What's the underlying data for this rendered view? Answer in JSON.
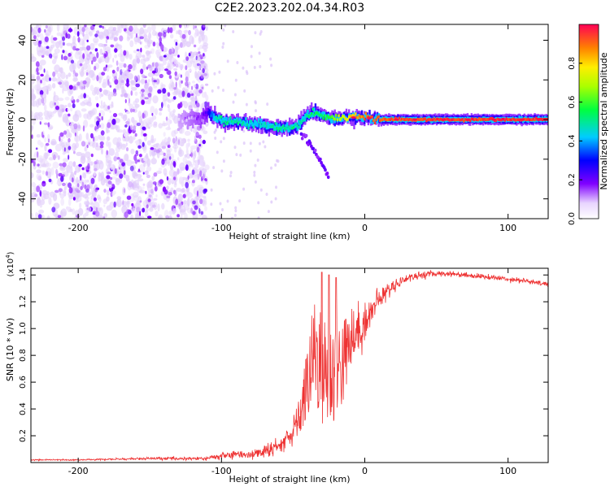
{
  "title": "C2E2.2023.202.04.34.R03",
  "chart_data": [
    {
      "type": "heatmap",
      "xlabel": "Height of straight line (km)",
      "ylabel": "Frequency (Hz)",
      "xlim": [
        -233,
        128
      ],
      "ylim": [
        -50,
        48
      ],
      "xticks": [
        -200,
        -100,
        0,
        100
      ],
      "yticks": [
        -40,
        -20,
        0,
        20,
        40
      ],
      "colorbar": {
        "label": "Normalized spectral amplitude",
        "range": [
          0,
          1
        ],
        "ticks": [
          0.0,
          0.2,
          0.4,
          0.6,
          0.8
        ]
      },
      "noise_region": {
        "x": [
          -233,
          -110
        ],
        "y": [
          -50,
          48
        ],
        "density": "high",
        "amplitude": [
          0.02,
          0.2
        ]
      },
      "sparse_region": {
        "x": [
          -110,
          -60
        ],
        "y": [
          -50,
          48
        ],
        "density": "low",
        "amplitude": [
          0.02,
          0.08
        ]
      },
      "ridge": {
        "x": [
          -130,
          -115,
          -110,
          -105,
          -100,
          -90,
          -80,
          -70,
          -60,
          -50,
          -45,
          -40,
          -35,
          -30,
          -25,
          -20,
          -15,
          -10,
          -5,
          0,
          10,
          30,
          60,
          90,
          128
        ],
        "freq": [
          0,
          0,
          4,
          1,
          -1,
          -1,
          -2,
          -3,
          -4,
          -4,
          -2,
          3,
          4,
          2,
          1,
          0,
          1,
          1,
          1,
          1,
          0,
          0,
          0,
          0,
          0
        ],
        "amplitude": [
          0.1,
          0.15,
          0.2,
          0.45,
          0.5,
          0.5,
          0.45,
          0.45,
          0.5,
          0.5,
          0.45,
          0.5,
          0.55,
          0.55,
          0.6,
          0.65,
          0.75,
          0.8,
          0.85,
          0.9,
          0.92,
          0.93,
          0.95,
          0.95,
          0.95
        ]
      },
      "tail": {
        "x": [
          -45,
          -40,
          -35,
          -30,
          -25
        ],
        "freq": [
          -6,
          -10,
          -16,
          -22,
          -30
        ],
        "amplitude": 0.15
      }
    },
    {
      "type": "line",
      "xlabel": "Height of straight line (km)",
      "ylabel": "SNR (10 * v/v)",
      "yscale_label": "(x10^4)",
      "xlim": [
        -233,
        128
      ],
      "ylim": [
        0,
        1.45
      ],
      "xticks": [
        -200,
        -100,
        0,
        100
      ],
      "yticks": [
        0.2,
        0.4,
        0.6,
        0.8,
        1.0,
        1.2,
        1.4
      ],
      "series": [
        {
          "color": "#ee3333",
          "x": [
            -233,
            -200,
            -150,
            -110,
            -100,
            -90,
            -80,
            -70,
            -60,
            -55,
            -50,
            -45,
            -40,
            -35,
            -30,
            -25,
            -20,
            -15,
            -10,
            0,
            10,
            20,
            30,
            40,
            50,
            60,
            70,
            80,
            90,
            100,
            110,
            120,
            128
          ],
          "y": [
            0.02,
            0.02,
            0.03,
            0.03,
            0.05,
            0.06,
            0.06,
            0.08,
            0.12,
            0.18,
            0.25,
            0.35,
            0.6,
            0.85,
            0.7,
            0.65,
            0.7,
            0.75,
            0.9,
            1.05,
            1.22,
            1.32,
            1.38,
            1.4,
            1.41,
            1.41,
            1.4,
            1.39,
            1.38,
            1.37,
            1.36,
            1.34,
            1.33
          ],
          "noise": [
            0.005,
            0.005,
            0.01,
            0.015,
            0.03,
            0.03,
            0.03,
            0.05,
            0.06,
            0.08,
            0.1,
            0.15,
            0.3,
            0.4,
            0.45,
            0.45,
            0.4,
            0.35,
            0.25,
            0.15,
            0.08,
            0.05,
            0.03,
            0.03,
            0.02,
            0.02,
            0.02,
            0.02,
            0.02,
            0.02,
            0.02,
            0.02,
            0.02
          ],
          "peaks": [
            [
              -30,
              1.42
            ],
            [
              -25,
              1.4
            ],
            [
              -20,
              1.38
            ]
          ]
        }
      ]
    }
  ]
}
